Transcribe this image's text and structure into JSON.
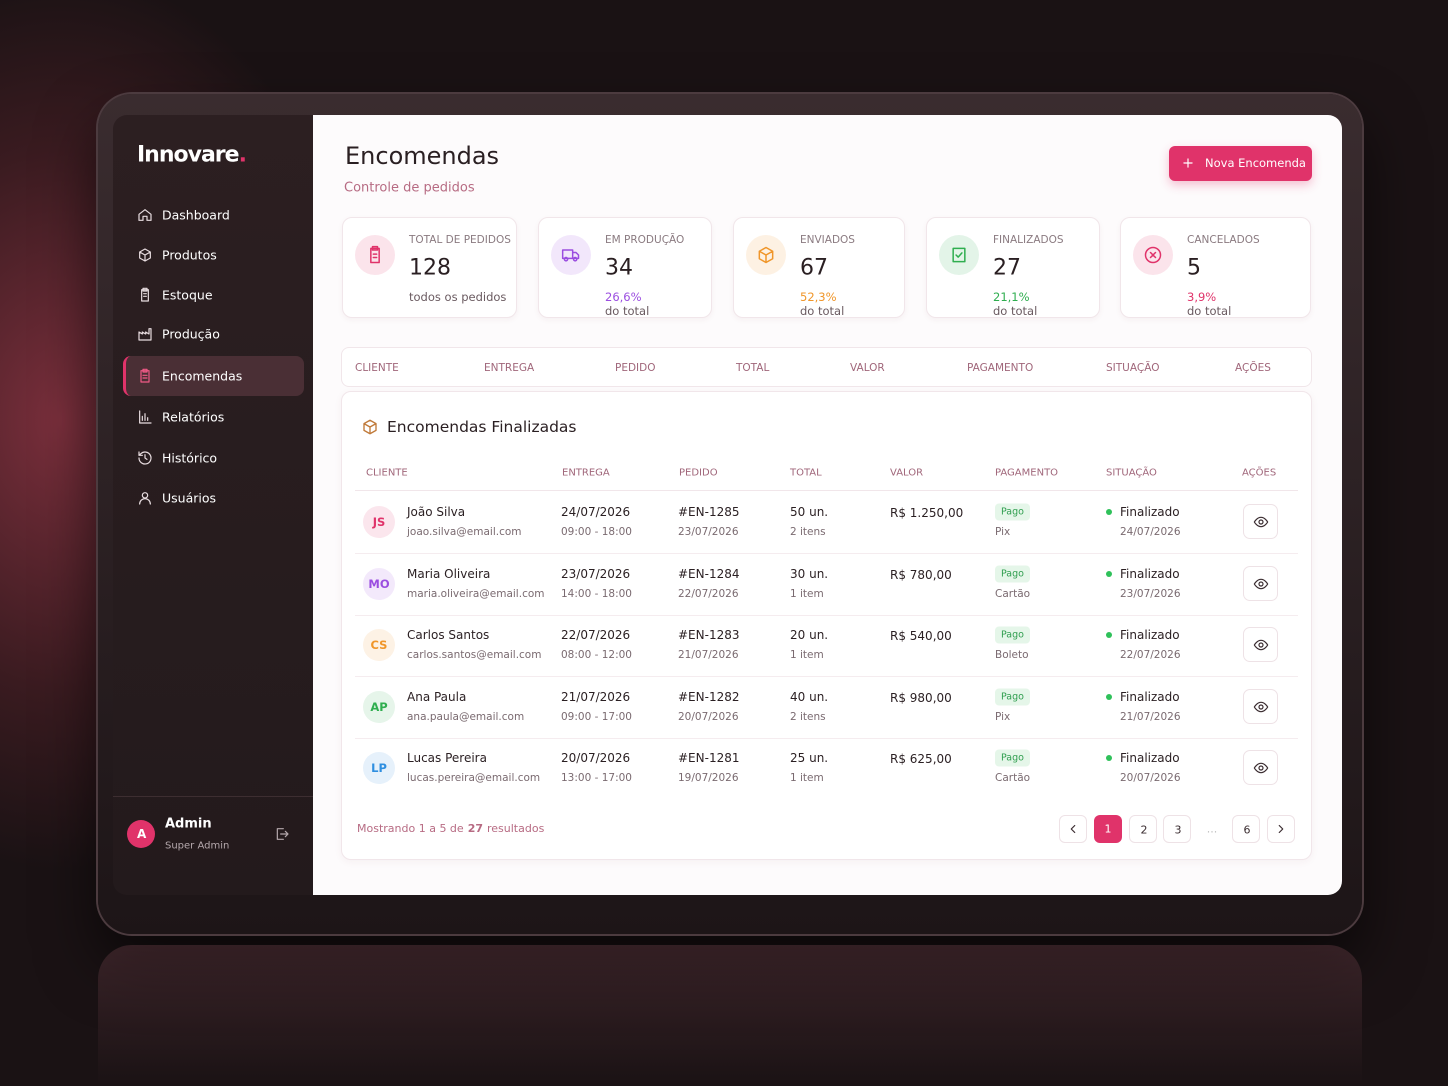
{
  "brand": {
    "name": "Innovare",
    "dot": "."
  },
  "nav": [
    {
      "label": "Dashboard",
      "active": false
    },
    {
      "label": "Produtos",
      "active": false
    },
    {
      "label": "Estoque",
      "active": false
    },
    {
      "label": "Produção",
      "active": false
    },
    {
      "label": "Encomendas",
      "active": true
    },
    {
      "label": "Relatórios",
      "active": false
    },
    {
      "label": "Histórico",
      "active": false
    },
    {
      "label": "Usuários",
      "active": false
    }
  ],
  "user": {
    "initial": "A",
    "name": "Admin",
    "role": "Super Admin"
  },
  "header": {
    "title": "Encomendas",
    "subtitle": "Controle de pedidos",
    "button": "Nova Encomenda"
  },
  "stats": [
    {
      "label": "TOTAL DE PEDIDOS",
      "value": "128",
      "note": "todos os pedidos",
      "color": "#e0336a"
    },
    {
      "label": "EM PRODUÇÃO",
      "value": "34",
      "percent": "26,6%",
      "note": "do total",
      "color": "#9b4ee0"
    },
    {
      "label": "ENVIADOS",
      "value": "67",
      "percent": "52,3%",
      "note": "do total",
      "color": "#f0962a"
    },
    {
      "label": "FINALIZADOS",
      "value": "27",
      "percent": "21,1%",
      "note": "do total",
      "color": "#2fae4f"
    },
    {
      "label": "CANCELADOS",
      "value": "5",
      "percent": "3,9%",
      "note": "do total",
      "color": "#e0336a"
    }
  ],
  "filter_header": [
    "CLIENTE",
    "ENTREGA",
    "PEDIDO",
    "TOTAL",
    "VALOR",
    "PAGAMENTO",
    "SITUAÇÃO",
    "AÇÕES"
  ],
  "table": {
    "title": "Encomendas Finalizadas",
    "columns": [
      "CLIENTE",
      "ENTREGA",
      "PEDIDO",
      "TOTAL",
      "VALOR",
      "PAGAMENTO",
      "SITUAÇÃO",
      "AÇÕES"
    ],
    "rows": [
      {
        "initials": "JS",
        "avatar_color": "#e0336a",
        "name": "João Silva",
        "email": "joao.silva@email.com",
        "delivery_date": "24/07/2026",
        "delivery_time": "09:00 - 18:00",
        "order": "#EN-1285",
        "order_date": "23/07/2026",
        "qty": "50 un.",
        "items": "2 itens",
        "value": "R$ 1.250,00",
        "payment_status": "Pago",
        "payment_method": "Pix",
        "status": "Finalizado",
        "status_date": "24/07/2026"
      },
      {
        "initials": "MO",
        "avatar_color": "#9b4ee0",
        "name": "Maria Oliveira",
        "email": "maria.oliveira@email.com",
        "delivery_date": "23/07/2026",
        "delivery_time": "14:00 - 18:00",
        "order": "#EN-1284",
        "order_date": "22/07/2026",
        "qty": "30 un.",
        "items": "1 item",
        "value": "R$ 780,00",
        "payment_status": "Pago",
        "payment_method": "Cartão",
        "status": "Finalizado",
        "status_date": "23/07/2026"
      },
      {
        "initials": "CS",
        "avatar_color": "#f0962a",
        "name": "Carlos Santos",
        "email": "carlos.santos@email.com",
        "delivery_date": "22/07/2026",
        "delivery_time": "08:00 - 12:00",
        "order": "#EN-1283",
        "order_date": "21/07/2026",
        "qty": "20 un.",
        "items": "1 item",
        "value": "R$ 540,00",
        "payment_status": "Pago",
        "payment_method": "Boleto",
        "status": "Finalizado",
        "status_date": "22/07/2026"
      },
      {
        "initials": "AP",
        "avatar_color": "#2fae4f",
        "name": "Ana Paula",
        "email": "ana.paula@email.com",
        "delivery_date": "21/07/2026",
        "delivery_time": "09:00 - 17:00",
        "order": "#EN-1282",
        "order_date": "20/07/2026",
        "qty": "40 un.",
        "items": "2 itens",
        "value": "R$ 980,00",
        "payment_status": "Pago",
        "payment_method": "Pix",
        "status": "Finalizado",
        "status_date": "21/07/2026"
      },
      {
        "initials": "LP",
        "avatar_color": "#2f8fe0",
        "name": "Lucas Pereira",
        "email": "lucas.pereira@email.com",
        "delivery_date": "20/07/2026",
        "delivery_time": "13:00 - 17:00",
        "order": "#EN-1281",
        "order_date": "19/07/2026",
        "qty": "25 un.",
        "items": "1 item",
        "value": "R$ 625,00",
        "payment_status": "Pago",
        "payment_method": "Cartão",
        "status": "Finalizado",
        "status_date": "20/07/2026"
      }
    ]
  },
  "pagination": {
    "prefix": "Mostrando 1 a 5 de",
    "total": "27",
    "suffix": "resultados",
    "pages": [
      "1",
      "2",
      "3",
      "...",
      "6"
    ],
    "current": "1"
  }
}
